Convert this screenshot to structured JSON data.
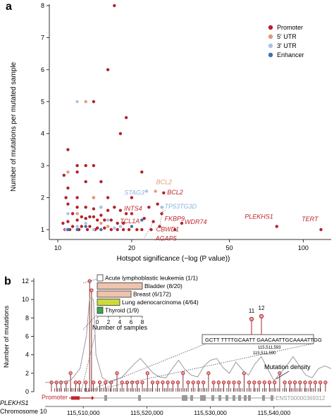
{
  "panel_a": {
    "label": "a",
    "xlabel": "Hotspot significance (−log (P value))",
    "ylabel": "Number of mutations per mutated sample",
    "xticks": [
      "10",
      "20",
      "50",
      "100"
    ],
    "yticks": [
      "1",
      "2",
      "3",
      "4",
      "5",
      "6",
      "7",
      "8"
    ],
    "legend": [
      {
        "label": "Promoter",
        "color": "#b5222b"
      },
      {
        "label": "5′ UTR",
        "color": "#e39a7a"
      },
      {
        "label": "3′ UTR",
        "color": "#a9c4e4"
      },
      {
        "label": "Enhancer",
        "color": "#3a72ad"
      }
    ]
  },
  "panel_b": {
    "label": "b",
    "ylabel": "Number of mutations",
    "yticks": [
      "0",
      "2",
      "4",
      "6",
      "8",
      "10",
      "12"
    ],
    "inset_xlabel": "Number of samples",
    "inset_xticks": [
      "0",
      "2",
      "4",
      "6",
      "8"
    ],
    "sequence": "GCTT TTTTGCAATT GAACAATTGCAAAATTGG",
    "peak_labels": [
      "11",
      "12"
    ],
    "coord_a": "115,511,593",
    "coord_b": "115,511,590",
    "mutation_density_label": "Mutation density",
    "promoter_label": "Promoter",
    "transcript": "ENST00000369312",
    "gene": "PLEKHS1",
    "chromosome": "Chromosome 10",
    "genome_ticks": [
      "115,510,000",
      "115,520,000",
      "115,530,000",
      "115,540,000"
    ]
  },
  "chart_data": [
    {
      "type": "scatter",
      "xlabel": "Hotspot significance (−log (P value))",
      "ylabel": "Number of mutations per mutated sample",
      "xscale": "log",
      "xlim": [
        10,
        120
      ],
      "ylim": [
        1,
        8
      ],
      "series": [
        {
          "name": "Promoter",
          "color": "#b5222b",
          "points": [
            [
              17,
              8
            ],
            [
              16,
              6
            ],
            [
              14,
              5
            ],
            [
              19,
              4.5
            ],
            [
              18,
              4
            ],
            [
              11,
              3.5
            ],
            [
              12,
              3
            ],
            [
              14,
              3
            ],
            [
              13,
              3
            ],
            [
              12,
              2.8
            ],
            [
              10.6,
              2.7
            ],
            [
              13,
              2.5
            ],
            [
              15,
              2.5
            ],
            [
              11,
              2.3
            ],
            [
              12,
              2
            ],
            [
              14,
              2
            ],
            [
              16,
              2
            ],
            [
              20,
              2
            ],
            [
              10.8,
              2
            ],
            [
              11,
              1.8
            ],
            [
              12,
              1.7
            ],
            [
              13,
              1.7
            ],
            [
              14,
              1.65
            ],
            [
              15,
              1.7
            ],
            [
              16,
              1.6
            ],
            [
              17,
              1.7
            ],
            [
              18,
              1.6
            ],
            [
              19,
              1.5
            ],
            [
              20,
              1.5
            ],
            [
              11.5,
              1.5
            ],
            [
              12.5,
              1.4
            ],
            [
              13.5,
              1.4
            ],
            [
              14.5,
              1.3
            ],
            [
              15.5,
              1.3
            ],
            [
              16.5,
              1.3
            ],
            [
              17.5,
              1.2
            ],
            [
              18.5,
              1.2
            ],
            [
              10.5,
              1.2
            ],
            [
              11.5,
              1.1
            ],
            [
              12.5,
              1.1
            ],
            [
              13.5,
              1.1
            ],
            [
              14.5,
              1.05
            ],
            [
              15.5,
              1.05
            ],
            [
              16.5,
              1.0
            ],
            [
              17.5,
              1.0
            ],
            [
              18.5,
              1.0
            ],
            [
              19.5,
              1.0
            ],
            [
              21,
              1.0
            ],
            [
              22,
              1.0
            ],
            [
              24,
              1.0
            ],
            [
              10.7,
              1.0
            ],
            [
              11.2,
              1.0
            ],
            [
              12.2,
              1.0
            ],
            [
              13.2,
              1.0
            ],
            [
              14.2,
              1.0
            ],
            [
              11,
              1.25
            ],
            [
              12,
              1.3
            ],
            [
              13,
              1.35
            ],
            [
              14,
              1.4
            ],
            [
              15,
              1.45
            ],
            [
              22,
              2.8
            ],
            [
              23.5,
              1.7
            ],
            [
              25.5,
              1.8
            ],
            [
              27,
              2.15
            ],
            [
              24.5,
              1.25
            ],
            [
              26.5,
              1.5
            ],
            [
              26,
              1.1
            ],
            [
              32,
              1.2
            ],
            [
              78,
              1.1
            ],
            [
              118,
              1.0
            ],
            [
              30,
              1.0
            ],
            [
              22.5,
              1.35
            ]
          ]
        },
        {
          "name": "5′ UTR",
          "color": "#e39a7a",
          "points": [
            [
              13,
              5
            ],
            [
              11,
              2.8
            ],
            [
              14,
              2
            ],
            [
              12,
              1.5
            ],
            [
              15,
              1.2
            ],
            [
              25,
              2.2
            ],
            [
              11,
              1.0
            ],
            [
              16,
              1.1
            ]
          ]
        },
        {
          "name": "3′ UTR",
          "color": "#a9c4e4",
          "points": [
            [
              12,
              5
            ],
            [
              11,
              1.5
            ],
            [
              13,
              1.2
            ],
            [
              15,
              1.7
            ],
            [
              16,
              1.3
            ],
            [
              23,
              2.2
            ],
            [
              26.5,
              1.7
            ],
            [
              10.8,
              1.0
            ],
            [
              12,
              1.1
            ],
            [
              14,
              1.0
            ],
            [
              17,
              1.05
            ],
            [
              18,
              1.1
            ]
          ]
        },
        {
          "name": "Enhancer",
          "color": "#3a72ad",
          "points": [
            [
              11,
              1.0
            ],
            [
              13,
              1.1
            ],
            [
              15,
              1.0
            ],
            [
              20,
              1.1
            ],
            [
              22,
              1.3
            ],
            [
              12,
              1.0
            ]
          ]
        }
      ],
      "annotations": [
        {
          "label": "TERT",
          "x": 118,
          "y": 1.0,
          "color": "#c0272d"
        },
        {
          "label": "PLEKHS1",
          "x": 78,
          "y": 1.1,
          "color": "#c0272d"
        },
        {
          "label": "STAG3",
          "x": 23,
          "y": 2.2,
          "color": "#8fb2de"
        },
        {
          "label": "BCL2",
          "x": 25,
          "y": 2.2,
          "color": "#e39a7a"
        },
        {
          "label": "BCL2",
          "x": 27,
          "y": 2.15,
          "color": "#c0272d"
        },
        {
          "label": "INTS4",
          "x": 22.5,
          "y": 1.7,
          "color": "#c0272d"
        },
        {
          "label": "TP53TG3D",
          "x": 26.5,
          "y": 1.7,
          "color": "#8fb2de"
        },
        {
          "label": "TCL1A",
          "x": 22,
          "y": 1.35,
          "color": "#c0272d"
        },
        {
          "label": "FKBP9",
          "x": 26.5,
          "y": 1.5,
          "color": "#c0272d"
        },
        {
          "label": "CBWD1",
          "x": 24.5,
          "y": 1.25,
          "color": "#c0272d"
        },
        {
          "label": "WDR74",
          "x": 32,
          "y": 1.2,
          "color": "#c0272d"
        },
        {
          "label": "AGAP5",
          "x": 26,
          "y": 1.1,
          "color": "#c0272d"
        }
      ]
    },
    {
      "type": "bar",
      "orientation": "horizontal",
      "xlabel": "Number of samples",
      "xlim": [
        0,
        8
      ],
      "categories": [
        "Acute lymphoblastic leukemia (1/1)",
        "Bladder (8/20)",
        "Breast (6/172)",
        "Lung adenocarcinoma (4/64)",
        "Thyroid (1/9)"
      ],
      "values": [
        1,
        8,
        6,
        4,
        1
      ],
      "colors": [
        "#ffffff",
        "#efc3ad",
        "#efc3ad",
        "#cddb3a",
        "#3aa74a"
      ]
    },
    {
      "type": "line",
      "ylabel": "Number of mutations",
      "xlim": [
        115504000,
        115549000
      ],
      "ylim": [
        0,
        12
      ],
      "series": [
        {
          "name": "Mutation density",
          "x": [
            115504000,
            115506000,
            115508000,
            115509500,
            115510500,
            115511000,
            115511600,
            115512000,
            115513000,
            115514000,
            115516000,
            115518000,
            115519000,
            115520000,
            115521000,
            115522000,
            115523000,
            115524000,
            115525000,
            115526000,
            115527000,
            115528000,
            115529000,
            115530000,
            115531000,
            115532000,
            115533000,
            115534000,
            115535000,
            115536000,
            115537000,
            115538000,
            115539000,
            115540000,
            115541000,
            115542000,
            115543000,
            115544000,
            115545000,
            115546000,
            115547000,
            115548000,
            115549000
          ],
          "values": [
            1,
            1,
            1.2,
            2.5,
            6,
            10.2,
            10,
            4,
            1.5,
            1.1,
            1.5,
            3,
            3.6,
            2.8,
            2,
            1.6,
            1.5,
            2.5,
            3.4,
            2.4,
            1.8,
            1.6,
            2.8,
            3.4,
            3.6,
            2.6,
            2,
            3.2,
            2.4,
            1.8,
            3,
            3.8,
            2.5,
            1.2,
            2,
            2.8,
            3.8,
            2.8,
            1.8,
            1.5,
            2.5,
            2.8,
            2.5
          ]
        }
      ],
      "lollipops": {
        "positions": [
          115505000,
          115505800,
          115506500,
          115507300,
          115508000,
          115508800,
          115509400,
          115510400,
          115511000,
          115511300,
          115511600,
          115512600,
          115513500,
          115514400,
          115515300,
          115516100,
          115516900,
          115517700,
          115518500,
          115519300,
          115520100,
          115520900,
          115521700,
          115522500,
          115523300,
          115524100,
          115524900,
          115525700,
          115526500,
          115527300,
          115528100,
          115528900,
          115529700,
          115530500,
          115531300,
          115532100,
          115532900,
          115533700,
          115534500,
          115535300,
          115536100,
          115536900,
          115537700,
          115538500,
          115539300,
          115540100,
          115540900,
          115541700,
          115542500,
          115543300,
          115544100,
          115544900,
          115545700,
          115546500,
          115547300,
          115548100
        ],
        "counts": [
          1,
          1,
          1,
          1,
          2,
          1,
          1,
          1,
          12,
          11,
          1,
          1,
          1,
          1,
          2,
          1,
          1,
          1,
          1,
          1,
          2,
          1,
          1,
          1,
          1,
          1,
          1,
          2,
          1,
          1,
          1,
          1,
          2,
          1,
          1,
          1,
          1,
          1,
          1,
          2,
          1,
          1,
          1,
          1,
          1,
          1,
          2,
          1,
          1,
          1,
          1,
          1,
          1,
          1,
          1,
          1
        ]
      }
    }
  ]
}
